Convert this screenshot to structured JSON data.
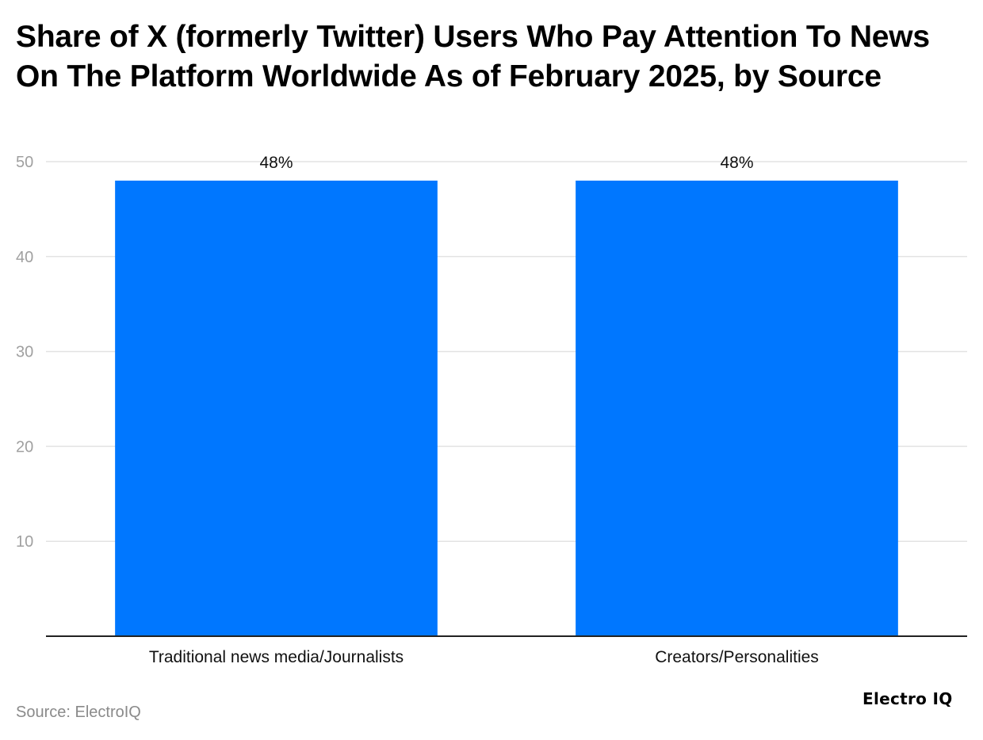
{
  "chart_data": {
    "type": "bar",
    "title": "Share of X (formerly Twitter) Users Who Pay Attention To News On The Platform Worldwide As of February 2025, by Source",
    "categories": [
      "Traditional news media/Journalists",
      "Creators/Personalities"
    ],
    "values": [
      48,
      48
    ],
    "data_labels": [
      "48%",
      "48%"
    ],
    "ylim": [
      0,
      50
    ],
    "yticks": [
      10,
      20,
      30,
      40,
      50
    ],
    "xlabel": "",
    "ylabel": "",
    "grid": true,
    "legend": "none",
    "bar_color": "#0077ff"
  },
  "footer": {
    "source": "Source: ElectroIQ",
    "brand": "Electro IQ"
  }
}
